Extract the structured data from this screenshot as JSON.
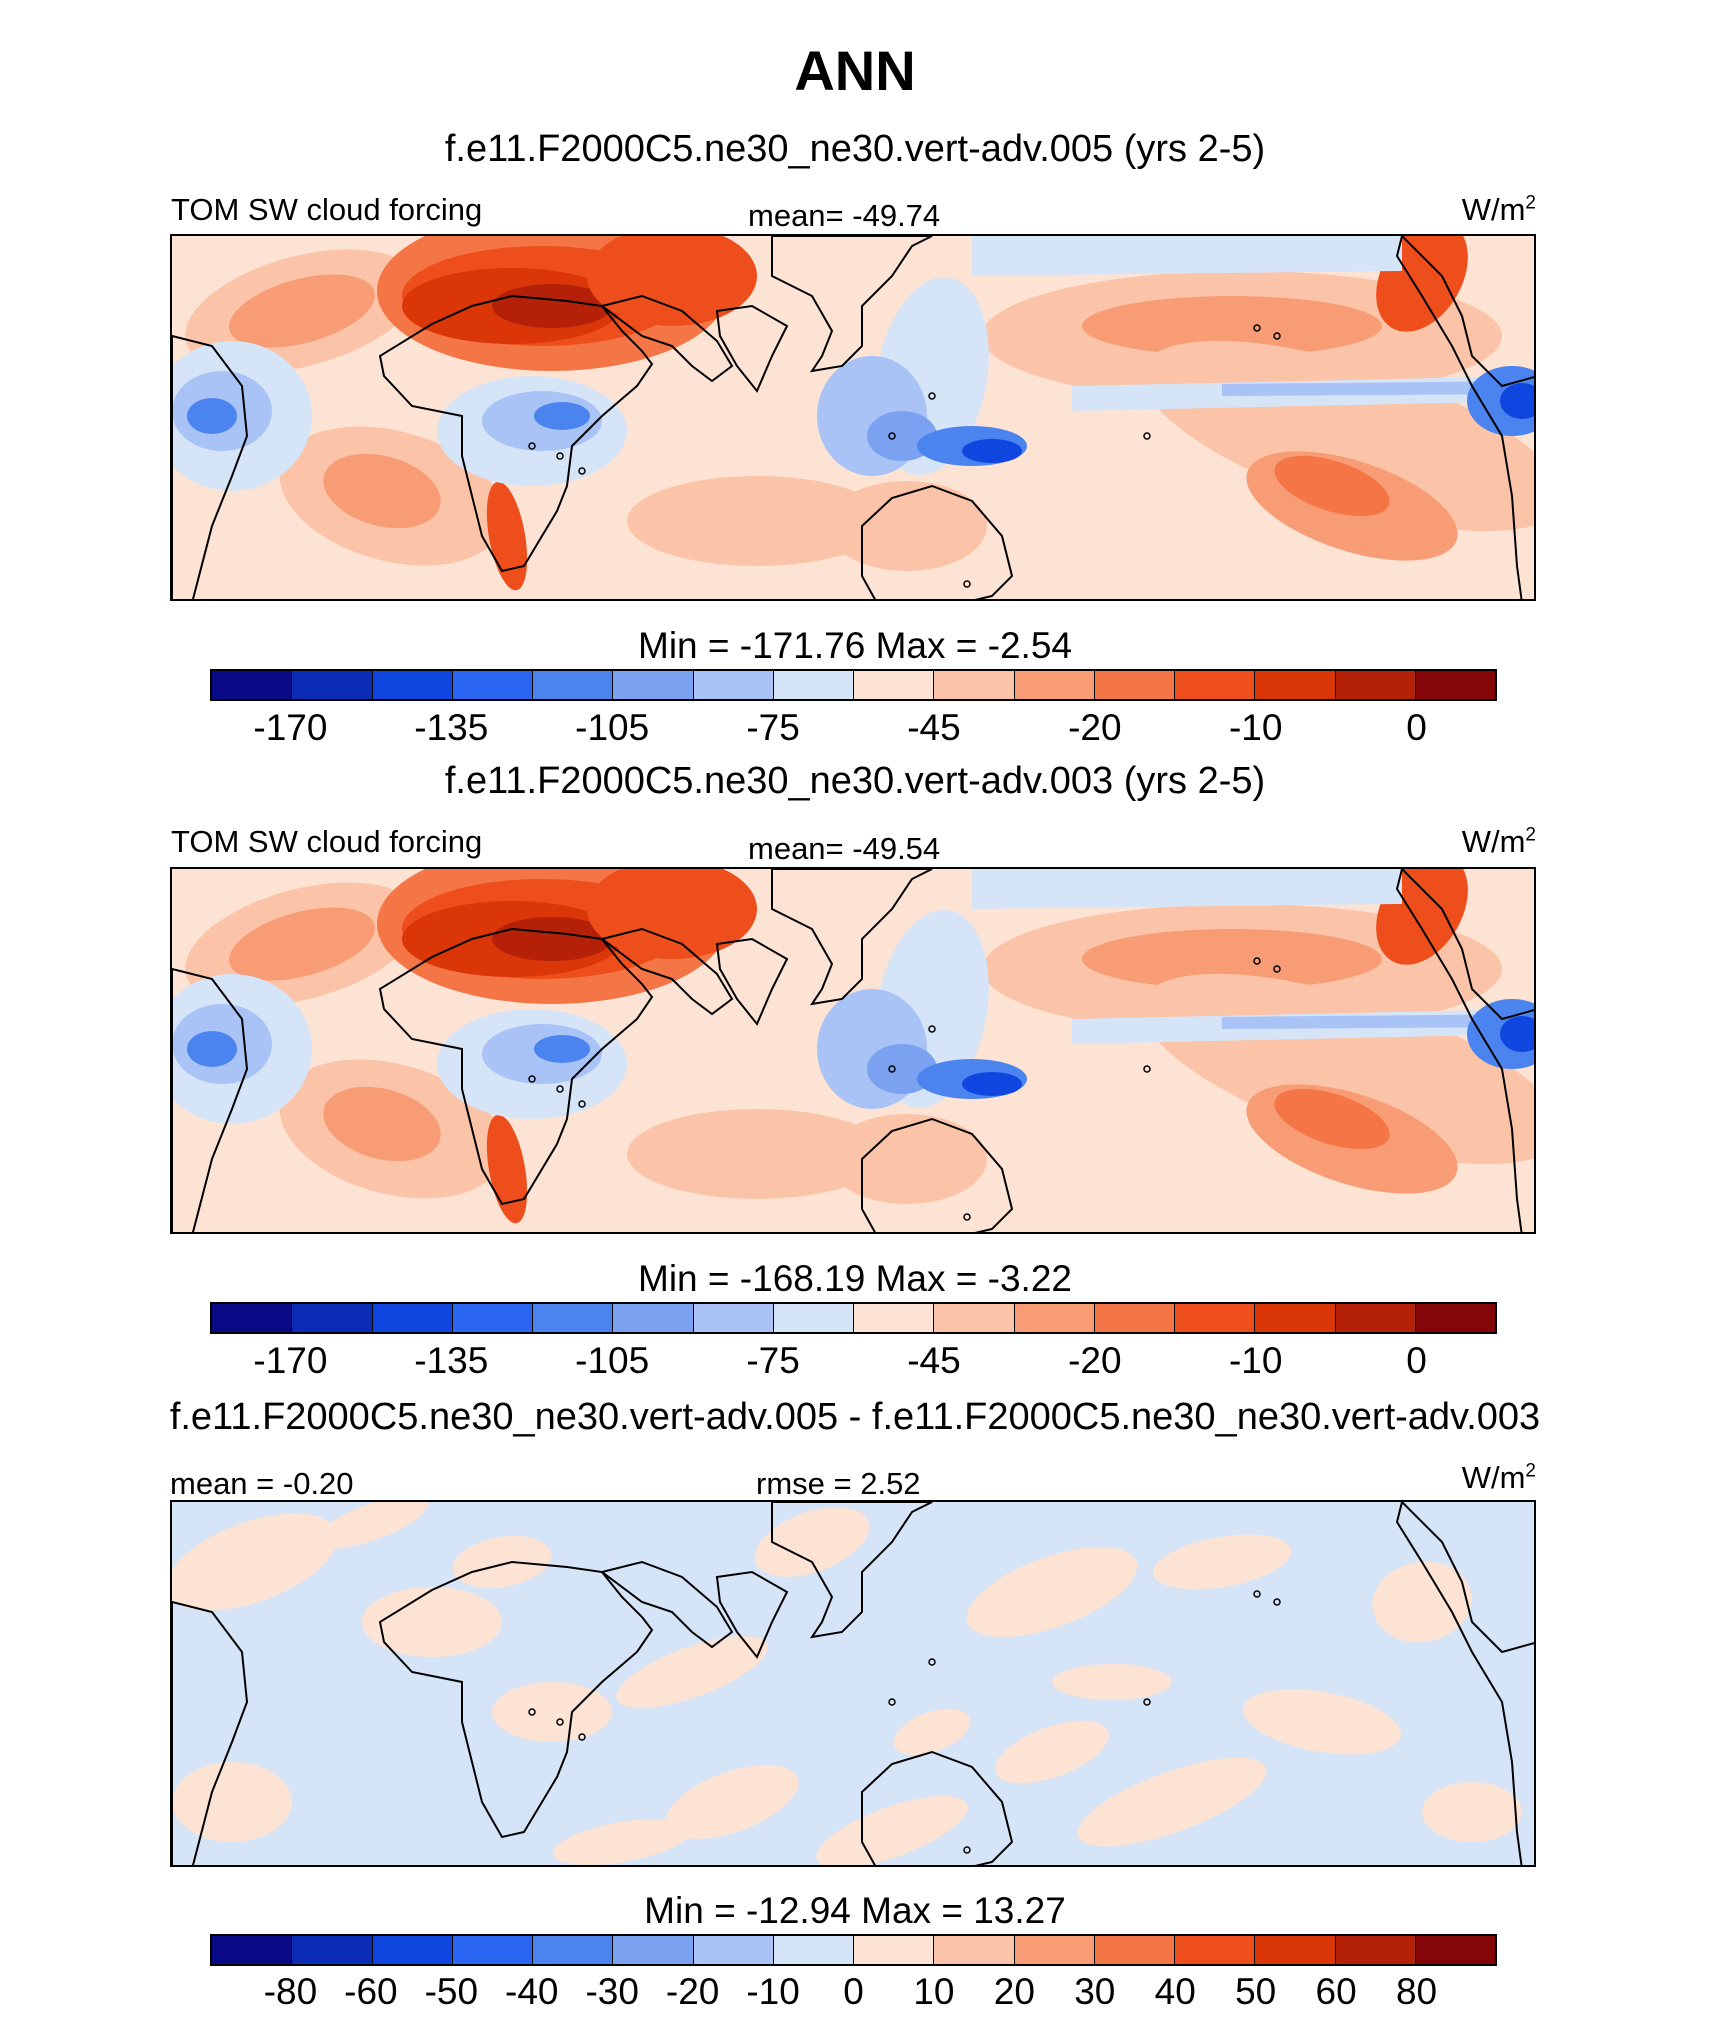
{
  "title": "ANN",
  "palette": [
    "#0a0a86",
    "#0b2cb6",
    "#0f46e0",
    "#2a66f2",
    "#4c84ef",
    "#7aa2f0",
    "#a9c3f6",
    "#d6e4f7",
    "#fde3d4",
    "#fbc4a9",
    "#f79c74",
    "#f47546",
    "#ed4e1c",
    "#da3608",
    "#b52108",
    "#850606"
  ],
  "panels": [
    {
      "title": "f.e11.F2000C5.ne30_ne30.vert-adv.005 (yrs 2-5)",
      "left_label": "TOM SW cloud forcing",
      "center_label": "mean= -49.74",
      "units": "W/m",
      "units_sup": "2",
      "minmax": "Min = -171.76 Max =  -2.54",
      "colorbar_ticks": [
        "-170",
        "-135",
        "-105",
        "-75",
        "-45",
        "-20",
        "-10",
        "0"
      ],
      "field": "base"
    },
    {
      "title": "f.e11.F2000C5.ne30_ne30.vert-adv.003 (yrs 2-5)",
      "left_label": "TOM SW cloud forcing",
      "center_label": "mean= -49.54",
      "units": "W/m",
      "units_sup": "2",
      "minmax": "Min = -168.19 Max =  -3.22",
      "colorbar_ticks": [
        "-170",
        "-135",
        "-105",
        "-75",
        "-45",
        "-20",
        "-10",
        "0"
      ],
      "field": "base"
    },
    {
      "title": "f.e11.F2000C5.ne30_ne30.vert-adv.005 - f.e11.F2000C5.ne30_ne30.vert-adv.003",
      "left_label": "mean =  -0.20",
      "center_label": "rmse =   2.52",
      "units": "W/m",
      "units_sup": "2",
      "minmax": "Min = -12.94 Max =  13.27",
      "colorbar_ticks": [
        "-80",
        "-60",
        "-50",
        "-40",
        "-30",
        "-20",
        "-10",
        "0",
        "10",
        "20",
        "30",
        "40",
        "50",
        "60",
        "80"
      ],
      "field": "diff"
    }
  ]
}
